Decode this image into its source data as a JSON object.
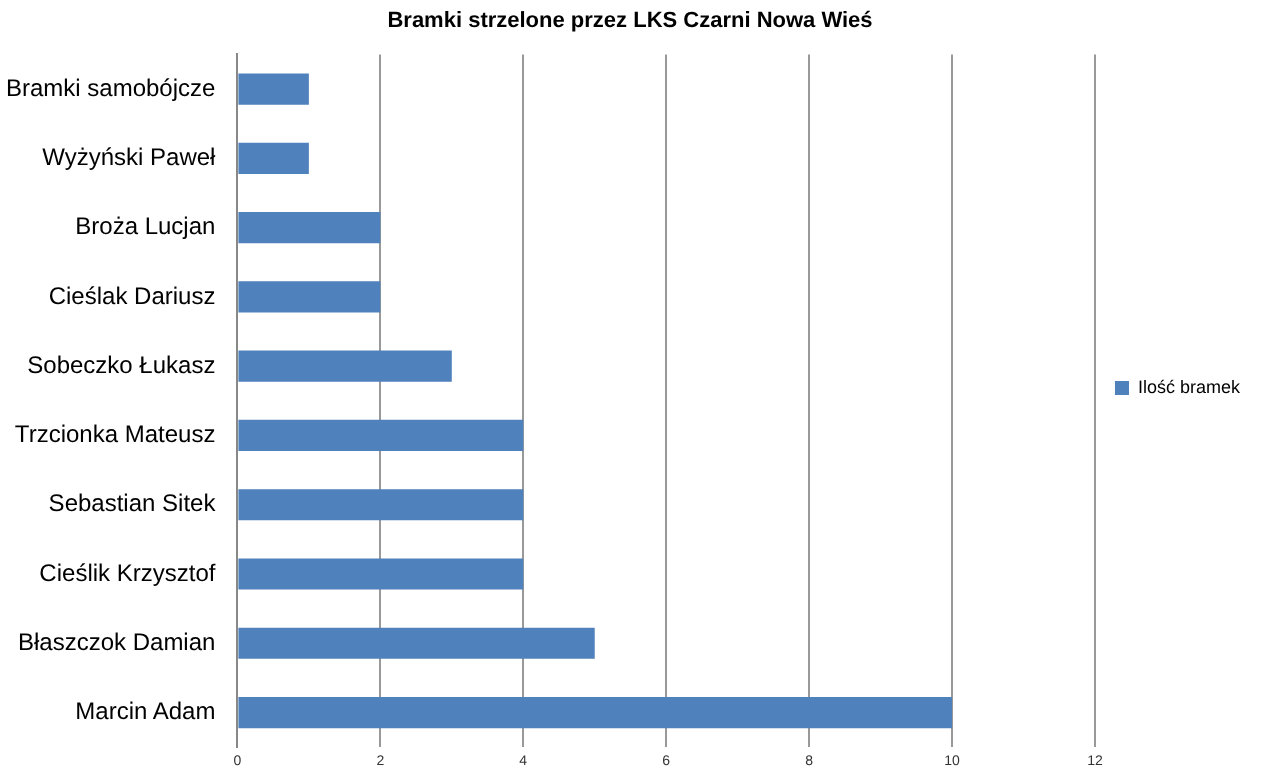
{
  "chart_data": {
    "type": "bar",
    "orientation": "horizontal",
    "title": "Bramki strzelone przez LKS Czarni Nowa Wieś",
    "categories": [
      "Bramki samobójcze",
      "Wyżyński Paweł",
      "Broża Lucjan",
      "Cieślak Dariusz",
      "Sobeczko Łukasz",
      "Trzcionka Mateusz",
      "Sebastian Sitek",
      "Cieślik Krzysztof",
      "Błaszczok Damian",
      "Marcin Adam"
    ],
    "series": [
      {
        "name": "Ilość bramek",
        "color": "#4f81bd",
        "values": [
          1,
          1,
          2,
          2,
          3,
          4,
          4,
          4,
          5,
          10
        ]
      }
    ],
    "xlim": [
      0,
      12
    ],
    "xticks": [
      0,
      2,
      4,
      6,
      8,
      10,
      12
    ],
    "grid": "x",
    "legend": "right"
  }
}
